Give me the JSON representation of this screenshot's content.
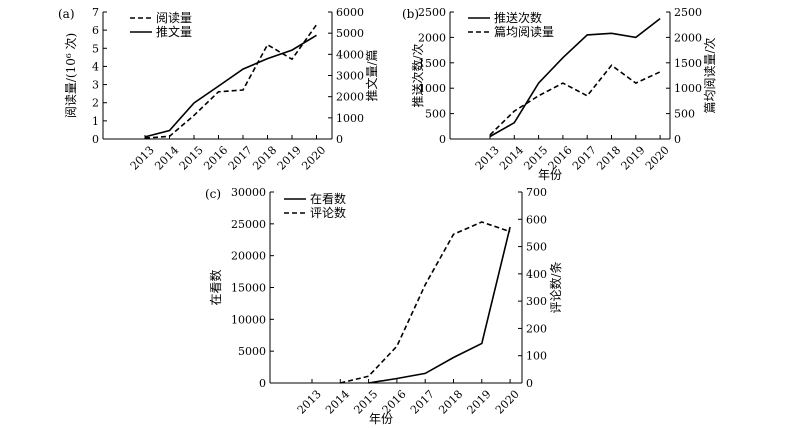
{
  "chart_data": [
    {
      "type": "line",
      "panel_label": "(a)",
      "xlabel": "",
      "ylabel_left": "阅读量/(10⁶ 次)",
      "ylabel_right": "推文量/篇",
      "x": [
        2013,
        2014,
        2015,
        2016,
        2017,
        2018,
        2019,
        2020
      ],
      "ylim_left": [
        0,
        7
      ],
      "yticks_left": [
        0,
        1,
        2,
        3,
        4,
        5,
        6,
        7
      ],
      "ylim_right": [
        0,
        6000
      ],
      "yticks_right": [
        0,
        1000,
        2000,
        3000,
        4000,
        5000,
        6000
      ],
      "series": [
        {
          "name": "阅读量",
          "axis": "left",
          "style": "dashed",
          "values": [
            0.05,
            0.15,
            1.3,
            2.6,
            2.7,
            5.2,
            4.4,
            6.3
          ]
        },
        {
          "name": "推文量",
          "axis": "right",
          "style": "solid",
          "values": [
            100,
            400,
            1700,
            2500,
            3300,
            3800,
            4200,
            4900
          ]
        }
      ],
      "legend": "top-left"
    },
    {
      "type": "line",
      "panel_label": "(b)",
      "xlabel": "年份",
      "ylabel_left": "推送次数/次",
      "ylabel_right": "篇均阅读量/次",
      "x": [
        2013,
        2014,
        2015,
        2016,
        2017,
        2018,
        2019,
        2020
      ],
      "ylim_left": [
        0,
        2500
      ],
      "yticks_left": [
        0,
        500,
        1000,
        1500,
        2000,
        2500
      ],
      "ylim_right": [
        0,
        2500
      ],
      "yticks_right": [
        0,
        500,
        1000,
        1500,
        2000,
        2500
      ],
      "series": [
        {
          "name": "推送次数",
          "axis": "left",
          "style": "solid",
          "values": [
            50,
            320,
            1100,
            1600,
            2050,
            2080,
            2000,
            2370
          ]
        },
        {
          "name": "篇均阅读量",
          "axis": "right",
          "style": "dashed",
          "values": [
            80,
            550,
            850,
            1100,
            850,
            1450,
            1100,
            1320
          ]
        }
      ],
      "legend": "top-left"
    },
    {
      "type": "line",
      "panel_label": "(c)",
      "xlabel": "年份",
      "ylabel_left": "在看数",
      "ylabel_right": "评论数/条",
      "x": [
        2013,
        2014,
        2015,
        2016,
        2017,
        2018,
        2019,
        2020
      ],
      "ylim_left": [
        0,
        30000
      ],
      "yticks_left": [
        0,
        5000,
        10000,
        15000,
        20000,
        25000,
        30000
      ],
      "ylim_right": [
        0,
        700
      ],
      "yticks_right": [
        0,
        100,
        200,
        300,
        400,
        500,
        600,
        700
      ],
      "series": [
        {
          "name": "在看数",
          "axis": "left",
          "style": "solid",
          "x": [
            2015,
            2016,
            2017,
            2018,
            2019,
            2020
          ],
          "values": [
            0,
            700,
            1500,
            4000,
            6200,
            24500
          ]
        },
        {
          "name": "评论数",
          "axis": "right",
          "style": "dashed",
          "x": [
            2014,
            2015,
            2016,
            2017,
            2018,
            2019,
            2020
          ],
          "values": [
            0,
            25,
            135,
            360,
            545,
            590,
            555
          ]
        }
      ],
      "legend": "top-left"
    }
  ]
}
